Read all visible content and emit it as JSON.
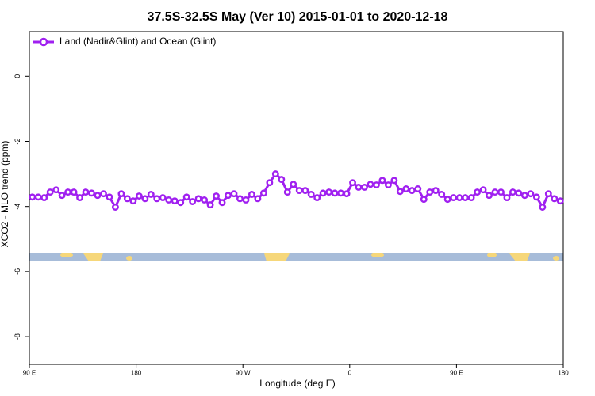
{
  "chart_data": {
    "type": "line",
    "title": "37.5S-32.5S May (Ver 10)   2015-01-01 to 2020-12-18",
    "x_label": "Longitude (deg E)",
    "y_label": "XCO2 - MLO trend (ppm)",
    "xlim": [
      90,
      540
    ],
    "xticks": [
      {
        "value": 90,
        "label": "90 E"
      },
      180,
      {
        "value": 270,
        "label": "90 W"
      },
      {
        "value": 360,
        "label": "0"
      },
      {
        "value": 450,
        "label": "90 E"
      },
      {
        "value": 540,
        "label": "180"
      }
    ],
    "ylim": [
      -8.85,
      1.37
    ],
    "yticks": [
      0,
      -2,
      -4,
      -6,
      -8
    ],
    "legend": "top-left",
    "x": [
      92.5,
      97.5,
      102.5,
      107.5,
      112.5,
      117.5,
      122.5,
      127.5,
      132.5,
      137.5,
      142.5,
      147.5,
      152.5,
      157.5,
      162.5,
      167.5,
      172.5,
      177.5,
      182.5,
      187.5,
      192.5,
      197.5,
      202.5,
      207.5,
      212.5,
      217.5,
      222.5,
      227.5,
      232.5,
      237.5,
      242.5,
      247.5,
      252.5,
      257.5,
      262.5,
      267.5,
      272.5,
      277.5,
      282.5,
      287.5,
      292.5,
      297.5,
      302.5,
      307.5,
      312.5,
      317.5,
      322.5,
      327.5,
      332.5,
      337.5,
      342.5,
      347.5,
      352.5,
      357.5,
      362.5,
      367.5,
      372.5,
      377.5,
      382.5,
      387.5,
      392.5,
      397.5,
      402.5,
      407.5,
      412.5,
      417.5,
      422.5,
      427.5,
      432.5,
      437.5,
      442.5,
      447.5,
      452.5,
      457.5,
      462.5,
      467.5,
      472.5,
      477.5,
      482.5,
      487.5,
      492.5,
      497.5,
      502.5,
      507.5,
      512.5,
      517.5,
      522.5,
      527.5,
      532.5,
      537.5
    ],
    "series": [
      {
        "name": "Land (Nadir&Glint) and Ocean (Glint)",
        "color": "#a020f0",
        "values": [
          -3.71,
          -3.71,
          -3.73,
          -3.56,
          -3.49,
          -3.66,
          -3.56,
          -3.56,
          -3.73,
          -3.56,
          -3.59,
          -3.66,
          -3.61,
          -3.71,
          -4.02,
          -3.61,
          -3.76,
          -3.83,
          -3.68,
          -3.76,
          -3.63,
          -3.76,
          -3.73,
          -3.8,
          -3.83,
          -3.88,
          -3.71,
          -3.85,
          -3.76,
          -3.8,
          -3.95,
          -3.68,
          -3.88,
          -3.66,
          -3.61,
          -3.76,
          -3.8,
          -3.63,
          -3.76,
          -3.59,
          -3.27,
          -3.0,
          -3.17,
          -3.56,
          -3.32,
          -3.51,
          -3.51,
          -3.63,
          -3.73,
          -3.59,
          -3.56,
          -3.59,
          -3.59,
          -3.61,
          -3.27,
          -3.41,
          -3.41,
          -3.32,
          -3.34,
          -3.2,
          -3.34,
          -3.2,
          -3.54,
          -3.46,
          -3.51,
          -3.46,
          -3.78,
          -3.56,
          -3.51,
          -3.63,
          -3.78,
          -3.73,
          -3.73,
          -3.73,
          -3.73,
          -3.56,
          -3.49,
          -3.66,
          -3.56,
          -3.56,
          -3.73,
          -3.56,
          -3.59,
          -3.66,
          -3.61,
          -3.71,
          -4.02,
          -3.61,
          -3.76,
          -3.83
        ]
      }
    ]
  }
}
